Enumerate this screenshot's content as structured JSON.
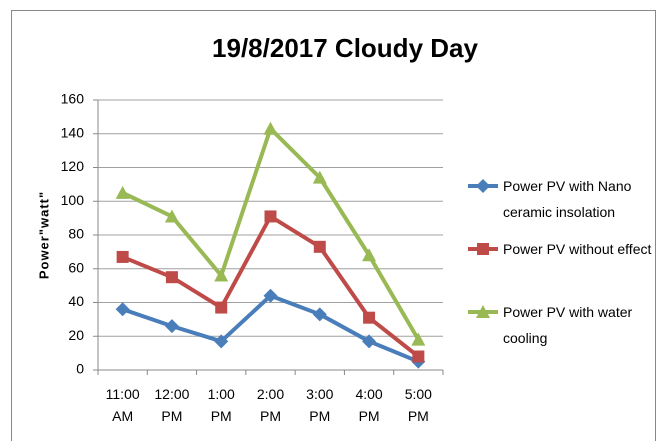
{
  "chart_data": {
    "type": "line",
    "title": "19/8/2017 Cloudy Day",
    "y_label": "Power\"watt\"",
    "categories": [
      "11:00 AM",
      "12:00 PM",
      "1:00 PM",
      "2:00 PM",
      "3:00 PM",
      "4:00 PM",
      "5:00 PM"
    ],
    "series": [
      {
        "name": "Power PV with Nano ceramic insolation",
        "color": "#4a7ebb",
        "marker": "diamond",
        "values": [
          36,
          26,
          17,
          44,
          33,
          17,
          5
        ]
      },
      {
        "name": "Power PV without effect",
        "color": "#be4b48",
        "marker": "square",
        "values": [
          67,
          55,
          37,
          91,
          73,
          31,
          8
        ]
      },
      {
        "name": "Power PV with water cooling",
        "color": "#98b954",
        "marker": "triangle",
        "values": [
          105,
          91,
          56,
          143,
          114,
          68,
          18
        ]
      }
    ],
    "ylim": [
      0,
      160
    ],
    "yticks": [
      0,
      20,
      40,
      60,
      80,
      100,
      120,
      140,
      160
    ],
    "grid": true,
    "legend": "right"
  }
}
